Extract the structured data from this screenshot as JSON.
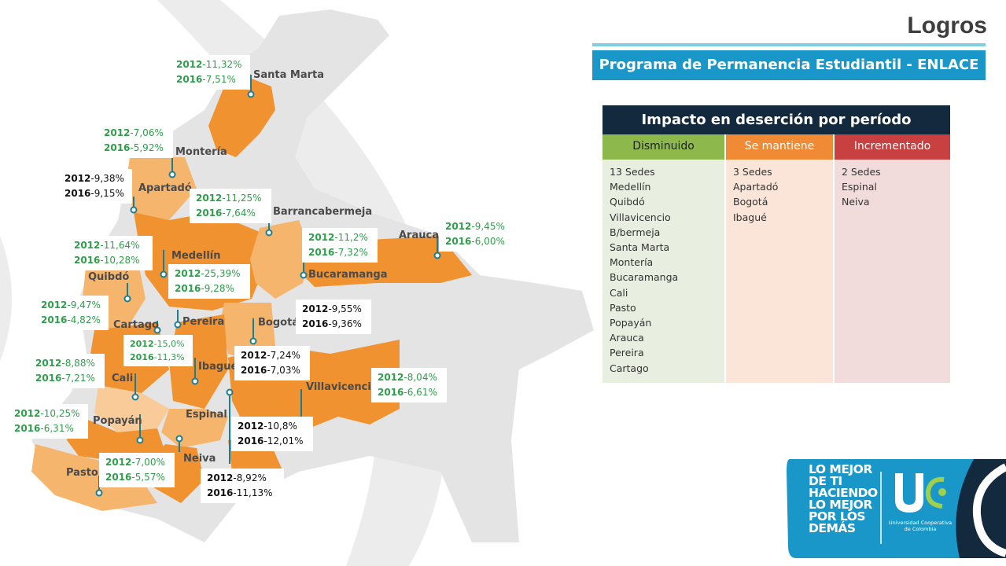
{
  "header": {
    "title": "Logros",
    "program": "Programa de Permanencia Estudiantil - ENLACE"
  },
  "impact_table": {
    "title": "Impacto en deserción por período",
    "columns": [
      {
        "label": "Disminuido",
        "items": [
          "13 Sedes",
          "Medellín",
          "Quibdó",
          "Villavicencio",
          "B/bermeja",
          "Santa Marta",
          "Montería",
          "Bucaramanga",
          "Cali",
          "Pasto",
          "Popayán",
          "Arauca",
          "Pereira",
          "Cartago"
        ]
      },
      {
        "label": "Se mantiene",
        "items": [
          "3 Sedes",
          "Apartadó",
          "Bogotá",
          "Ibagué"
        ]
      },
      {
        "label": "Incrementado",
        "items": [
          "2 Sedes",
          "Espinal",
          "Neiva"
        ]
      }
    ]
  },
  "map": {
    "cities": {
      "santa_marta": "Santa Marta",
      "monteria": "Montería",
      "apartado": "Apartadó",
      "barrancabermeja": "Barrancabermeja",
      "arauca": "Arauca",
      "medellin": "Medellín",
      "bucaramanga": "Bucaramanga",
      "quibdo": "Quibdó",
      "cartago": "Cartago",
      "pereira": "Pereira",
      "bogota": "Bogotá",
      "ibague": "Ibagué",
      "cali": "Cali",
      "villavicencio": "Villavicencio",
      "espinal": "Espinal",
      "popayan": "Popayán",
      "neiva": "Neiva",
      "pasto": "Pasto"
    },
    "stats": {
      "santa_marta": {
        "y1": "2012",
        "v1": "-11,32%",
        "y2": "2016",
        "v2": "-7,51%"
      },
      "monteria": {
        "y1": "2012",
        "v1": "-7,06%",
        "y2": "2016",
        "v2": "-5,92%"
      },
      "apartado": {
        "y1": "2012",
        "v1": "-9,38%",
        "y2": "2016",
        "v2": "-9,15%"
      },
      "barrancabermeja": {
        "y1": "2012",
        "v1": "-11,25%",
        "y2": "2016",
        "v2": "-7,64%"
      },
      "arauca": {
        "y1": "2012",
        "v1": "-9,45%",
        "y2": "2016",
        "v2": "-6,00%"
      },
      "quibdo": {
        "y1": "2012",
        "v1": "-11,64%",
        "y2": "2016",
        "v2": "-10,28%"
      },
      "bucaramanga": {
        "y1": "2012",
        "v1": "-11,2%",
        "y2": "2016",
        "v2": "-7,32%"
      },
      "medellin": {
        "y1": "2012",
        "v1": "-25,39%",
        "y2": "2016",
        "v2": "-9,28%"
      },
      "cartago": {
        "y1": "2012",
        "v1": "-9,47%",
        "y2": "2016",
        "v2": "-4,82%"
      },
      "bogota": {
        "y1": "2012",
        "v1": "-9,55%",
        "y2": "2016",
        "v2": "-9,36%"
      },
      "pereira": {
        "y1": "2012",
        "v1": "-15,0%",
        "y2": "2016",
        "v2": "-11,3%"
      },
      "ibague": {
        "y1": "2012",
        "v1": "-7,24%",
        "y2": "2016",
        "v2": "-7,03%"
      },
      "cali": {
        "y1": "2012",
        "v1": "-8,88%",
        "y2": "2016",
        "v2": "-7,21%"
      },
      "villavicencio": {
        "y1": "2012",
        "v1": "-8,04%",
        "y2": "2016",
        "v2": "-6,61%"
      },
      "popayan": {
        "y1": "2012",
        "v1": "-10,25%",
        "y2": "2016",
        "v2": "-6,31%"
      },
      "espinal": {
        "y1": "2012",
        "v1": "-10,8%",
        "y2": "2016",
        "v2": "-12,01%"
      },
      "pasto": {
        "y1": "2012",
        "v1": "-7,00%",
        "y2": "2016",
        "v2": "-5,57%"
      },
      "neiva": {
        "y1": "2012",
        "v1": "-8,92%",
        "y2": "2016",
        "v2": "-11,13%"
      }
    }
  },
  "logo": {
    "slogan": [
      "LO MEJOR",
      "DE TI",
      "HACIENDO",
      "LO MEJOR",
      "POR LOS",
      "DEMÁS"
    ],
    "university": "Universidad Cooperativa de Colombia"
  },
  "colors": {
    "banner": "#1a97c9",
    "table_header": "#13293d",
    "decreased": "#8db94c",
    "maintained": "#f08a35",
    "increased": "#c94041",
    "map_dark": "#f0922f",
    "map_light": "#f6b56d"
  }
}
